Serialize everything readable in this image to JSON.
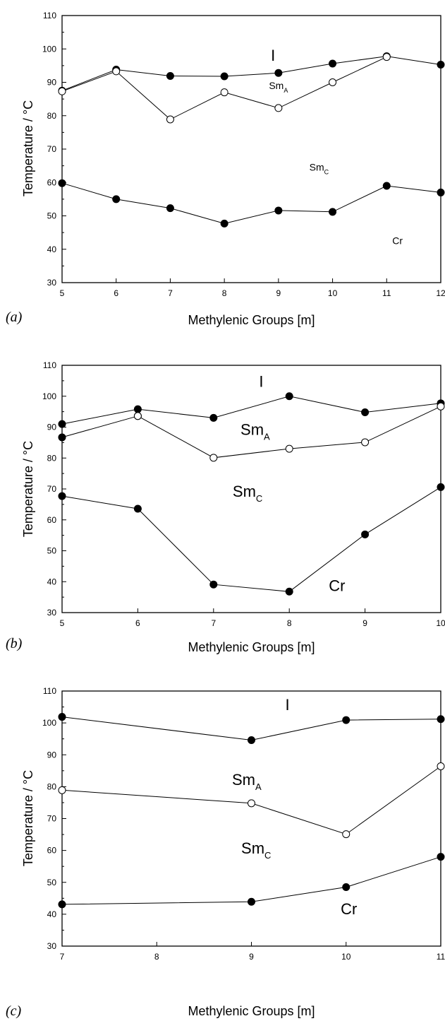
{
  "chart_data": [
    {
      "type": "line",
      "panel_label": "(a)",
      "xlabel": "Methylenic Groups [m]",
      "ylabel": "Temperature / °C",
      "xlim": [
        5,
        12
      ],
      "ylim": [
        30,
        110
      ],
      "xticks": [
        5,
        6,
        7,
        8,
        9,
        10,
        11,
        12
      ],
      "yticks": [
        30,
        40,
        50,
        60,
        70,
        80,
        90,
        100,
        110
      ],
      "grid": false,
      "series": [
        {
          "marker": "filled",
          "x": [
            5,
            6,
            7,
            8,
            9,
            10,
            11,
            12
          ],
          "y": [
            87.5,
            93.8,
            91.9,
            91.8,
            92.8,
            95.6,
            97.8,
            95.3
          ]
        },
        {
          "marker": "open",
          "x": [
            5,
            6,
            7,
            8,
            9,
            10,
            11
          ],
          "y": [
            87.3,
            93.3,
            78.9,
            87,
            82.3,
            90,
            97.6
          ]
        },
        {
          "marker": "filled",
          "x": [
            5,
            6,
            7,
            8,
            9,
            10,
            11,
            12
          ],
          "y": [
            59.8,
            55,
            52.3,
            47.7,
            51.6,
            51.2,
            59,
            57
          ]
        }
      ],
      "phase_labels": [
        {
          "base": "I",
          "sub": "",
          "x": 8.9,
          "y": 96.5,
          "size": "large"
        },
        {
          "base": "Sm",
          "sub": "A",
          "x": 9.0,
          "y": 88,
          "size": "small"
        },
        {
          "base": "Sm",
          "sub": "C",
          "x": 9.75,
          "y": 63.5,
          "size": "small"
        },
        {
          "base": "Cr",
          "sub": "",
          "x": 11.2,
          "y": 41.5,
          "size": "small"
        }
      ]
    },
    {
      "type": "line",
      "panel_label": "(b)",
      "xlabel": "Methylenic Groups [m]",
      "ylabel": "Temperature / °C",
      "xlim": [
        5,
        10
      ],
      "ylim": [
        30,
        110
      ],
      "xticks": [
        5,
        6,
        7,
        8,
        9,
        10
      ],
      "yticks": [
        30,
        40,
        50,
        60,
        70,
        80,
        90,
        100,
        110
      ],
      "grid": false,
      "series": [
        {
          "marker": "filled",
          "x": [
            5,
            6,
            7,
            8,
            9,
            10
          ],
          "y": [
            91,
            95.8,
            93,
            100,
            94.8,
            97.7
          ]
        },
        {
          "marker": "filled",
          "x": [
            5,
            6
          ],
          "y": [
            86.7,
            93.6
          ]
        },
        {
          "marker": "open",
          "x": [
            6,
            7,
            8,
            9,
            10
          ],
          "y": [
            93.6,
            80.1,
            83,
            85.1,
            96.7
          ]
        },
        {
          "marker": "filled",
          "x": [
            5,
            6,
            7,
            8,
            9,
            10
          ],
          "y": [
            67.7,
            63.6,
            39.1,
            36.8,
            55.3,
            70.6
          ]
        }
      ],
      "phase_labels": [
        {
          "base": "I",
          "sub": "",
          "x": 7.63,
          "y": 103,
          "size": "large"
        },
        {
          "base": "Sm",
          "sub": "A",
          "x": 7.55,
          "y": 87.5,
          "size": "large"
        },
        {
          "base": "Sm",
          "sub": "C",
          "x": 7.45,
          "y": 67.5,
          "size": "large"
        },
        {
          "base": "Cr",
          "sub": "",
          "x": 8.63,
          "y": 37,
          "size": "large"
        }
      ]
    },
    {
      "type": "line",
      "panel_label": "(c)",
      "xlabel": "Methylenic Groups [m]",
      "ylabel": "Temperature / °C",
      "xlim": [
        7,
        11
      ],
      "ylim": [
        30,
        110
      ],
      "xticks": [
        7,
        8,
        9,
        10,
        11
      ],
      "yticks": [
        30,
        40,
        50,
        60,
        70,
        80,
        90,
        100,
        110
      ],
      "grid": false,
      "series": [
        {
          "marker": "filled",
          "x": [
            7,
            9,
            10,
            11
          ],
          "y": [
            101.9,
            94.6,
            100.9,
            101.2
          ]
        },
        {
          "marker": "open",
          "x": [
            7,
            9,
            10,
            11
          ],
          "y": [
            78.9,
            74.8,
            65.1,
            86.4
          ]
        },
        {
          "marker": "filled",
          "x": [
            7,
            9,
            10,
            11
          ],
          "y": [
            43.1,
            43.9,
            48.5,
            58
          ]
        }
      ],
      "phase_labels": [
        {
          "base": "I",
          "sub": "",
          "x": 9.38,
          "y": 104,
          "size": "large"
        },
        {
          "base": "Sm",
          "sub": "A",
          "x": 8.95,
          "y": 80.5,
          "size": "large"
        },
        {
          "base": "Sm",
          "sub": "C",
          "x": 9.05,
          "y": 59,
          "size": "large"
        },
        {
          "base": "Cr",
          "sub": "",
          "x": 10.03,
          "y": 40,
          "size": "large"
        }
      ]
    }
  ]
}
